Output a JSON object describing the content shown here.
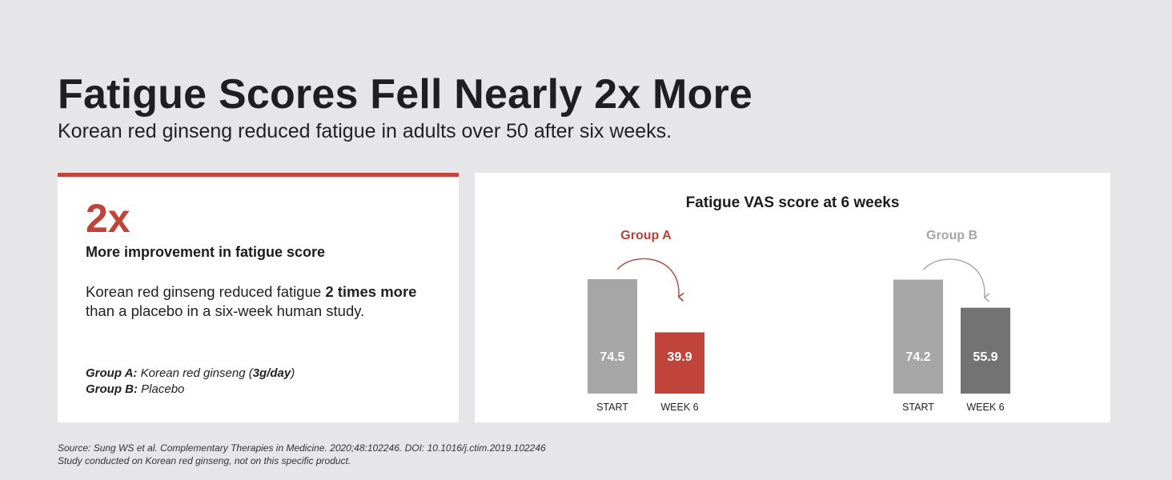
{
  "header": {
    "title": "Fatigue Scores Fell Nearly 2x More",
    "subtitle": "Korean red ginseng reduced fatigue in adults over 50 after six weeks."
  },
  "highlight": {
    "stat": "2x",
    "stat_label": "More improvement in fatigue score",
    "desc_pre": "Korean red ginseng reduced fatigue ",
    "desc_bold": "2 times more",
    "desc_post": " than a placebo in a six-week human study.",
    "group_a_label": "Group A:",
    "group_a_text": "Korean red ginseng (",
    "group_a_dose": "3g/day",
    "group_a_close": ")",
    "group_b_label": "Group B:",
    "group_b_text": "Placebo",
    "accent_color": "#c0443a"
  },
  "chart_data": {
    "type": "bar",
    "title": "Fatigue VAS score at 6 weeks",
    "categories": [
      "START",
      "WEEK 6"
    ],
    "ylim": [
      0,
      100
    ],
    "series": [
      {
        "name": "Group A",
        "values": [
          74.5,
          39.9
        ],
        "colors": [
          "#a6a6a6",
          "#c0443a"
        ],
        "label_color": "#b5433a"
      },
      {
        "name": "Group B",
        "values": [
          74.2,
          55.9
        ],
        "colors": [
          "#a6a6a6",
          "#737373"
        ],
        "label_color": "#a6a6a6"
      }
    ],
    "grid": false,
    "legend": "none"
  },
  "footer": {
    "source_line1": "Source: Sung WS et al. Complementary Therapies in Medicine. 2020;48:102246. DOI: 10.1016/j.ctim.2019.102246",
    "source_line2": "Study conducted on Korean red ginseng, not on this specific product."
  }
}
